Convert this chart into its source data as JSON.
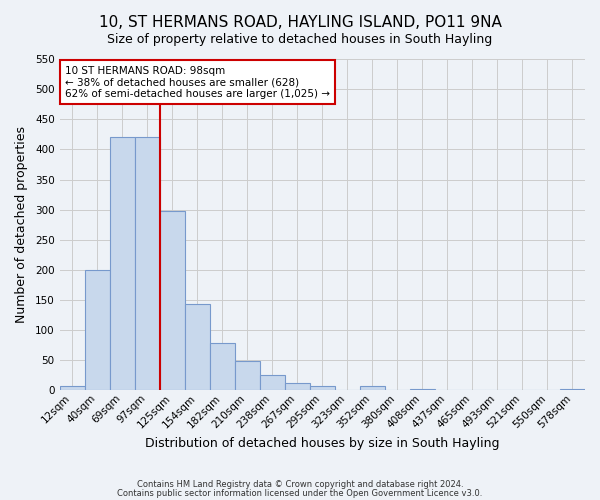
{
  "title": "10, ST HERMANS ROAD, HAYLING ISLAND, PO11 9NA",
  "subtitle": "Size of property relative to detached houses in South Hayling",
  "xlabel": "Distribution of detached houses by size in South Hayling",
  "ylabel": "Number of detached properties",
  "bin_labels": [
    "12sqm",
    "40sqm",
    "69sqm",
    "97sqm",
    "125sqm",
    "154sqm",
    "182sqm",
    "210sqm",
    "238sqm",
    "267sqm",
    "295sqm",
    "323sqm",
    "352sqm",
    "380sqm",
    "408sqm",
    "437sqm",
    "465sqm",
    "493sqm",
    "521sqm",
    "550sqm",
    "578sqm"
  ],
  "bar_heights": [
    8,
    200,
    420,
    420,
    298,
    143,
    78,
    48,
    25,
    12,
    8,
    0,
    8,
    0,
    2,
    0,
    0,
    0,
    0,
    0,
    2
  ],
  "bar_color": "#c8d8ec",
  "bar_edge_color": "#7799cc",
  "ylim": [
    0,
    550
  ],
  "yticks": [
    0,
    50,
    100,
    150,
    200,
    250,
    300,
    350,
    400,
    450,
    500,
    550
  ],
  "red_line_bin_index": 3,
  "annotation_title": "10 ST HERMANS ROAD: 98sqm",
  "annotation_line1": "← 38% of detached houses are smaller (628)",
  "annotation_line2": "62% of semi-detached houses are larger (1,025) →",
  "annotation_box_color": "#ffffff",
  "annotation_box_edge": "#cc0000",
  "red_line_color": "#cc0000",
  "footer1": "Contains HM Land Registry data © Crown copyright and database right 2024.",
  "footer2": "Contains public sector information licensed under the Open Government Licence v3.0.",
  "background_color": "#eef2f7",
  "grid_color": "#cccccc",
  "title_fontsize": 11,
  "subtitle_fontsize": 9,
  "xlabel_fontsize": 9,
  "ylabel_fontsize": 9,
  "tick_fontsize": 7.5
}
